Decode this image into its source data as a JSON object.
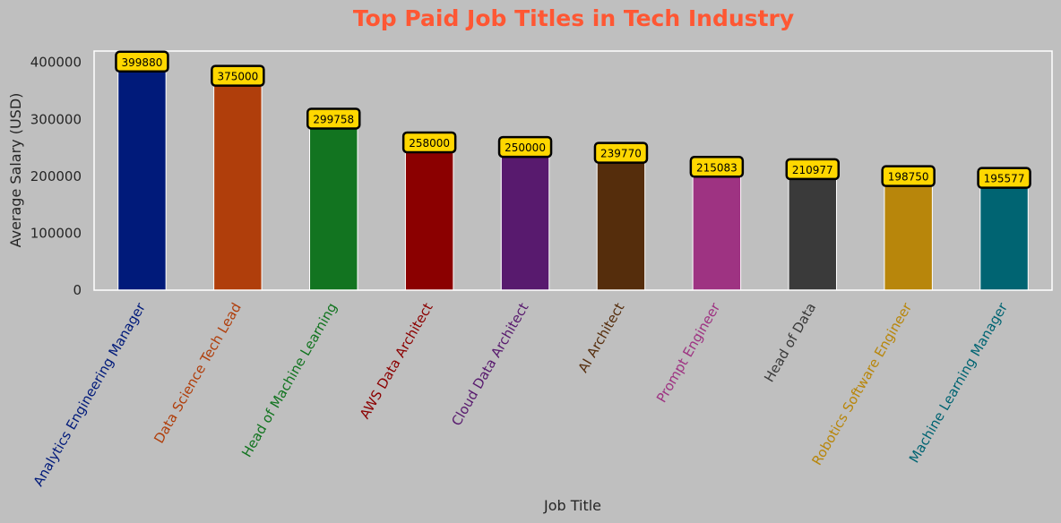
{
  "chart_data": {
    "type": "bar",
    "title": "Top Paid Job Titles in Tech Industry",
    "xlabel": "Job Title",
    "ylabel": "Average Salary (USD)",
    "ylim": [
      0,
      420000
    ],
    "yticks": [
      "0",
      "100000",
      "200000",
      "300000",
      "400000"
    ],
    "ytick_values": [
      0,
      100000,
      200000,
      300000,
      400000
    ],
    "grid": false,
    "categories": [
      "Analytics Engineering Manager",
      "Data Science Tech Lead",
      "Head of Machine Learning",
      "AWS Data Architect",
      "Cloud Data Architect",
      "AI Architect",
      "Prompt Engineer",
      "Head of Data",
      "Robotics Software Engineer",
      "Machine Learning Manager"
    ],
    "values": [
      399880,
      375000,
      299758,
      258000,
      250000,
      239770,
      215083,
      210977,
      198750,
      195577
    ],
    "value_labels": [
      "399880",
      "375000",
      "299758",
      "258000",
      "250000",
      "239770",
      "215083",
      "210977",
      "198750",
      "195577"
    ],
    "colors": [
      "#001a7a",
      "#b03e0b",
      "#127420",
      "#8b0000",
      "#581a6e",
      "#552d0c",
      "#9e3382",
      "#3a3a3a",
      "#b8860b",
      "#006472"
    ],
    "title_color": "#ff5733",
    "data_label_box_color": "#ffd700"
  }
}
